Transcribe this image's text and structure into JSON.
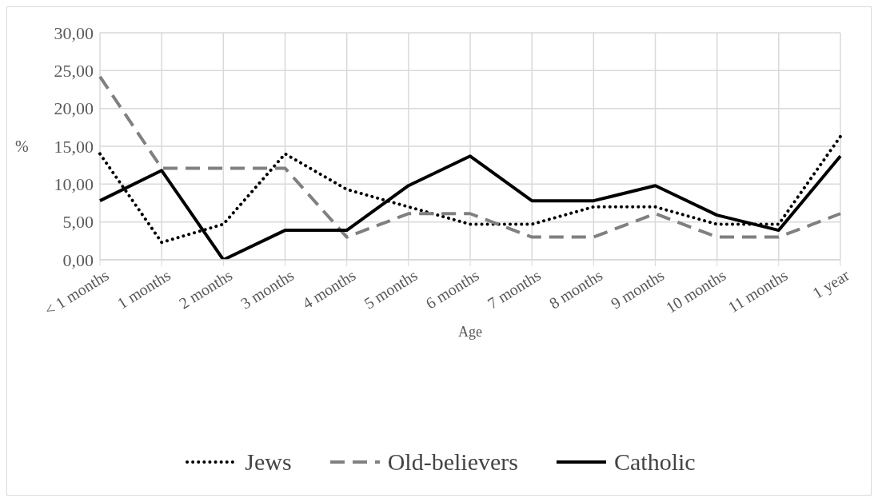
{
  "chart_data": {
    "type": "line",
    "xlabel": "Age",
    "ylabel": "%",
    "categories": [
      "< 1 months",
      "1 months",
      "2 months",
      "3 months",
      "4 months",
      "5 months",
      "6 months",
      "7 months",
      "8 months",
      "9 months",
      "10 months",
      "11 months",
      "1 year"
    ],
    "series": [
      {
        "name": "Jews",
        "color": "#000000",
        "line_style": "dotted",
        "values": [
          14.0,
          2.3,
          4.7,
          14.0,
          9.3,
          7.0,
          4.7,
          4.7,
          7.0,
          7.0,
          4.7,
          4.7,
          16.3
        ]
      },
      {
        "name": "Old-believers",
        "color": "#808080",
        "line_style": "dashed",
        "values": [
          24.2,
          12.1,
          12.1,
          12.1,
          3.0,
          6.1,
          6.1,
          3.0,
          3.0,
          6.1,
          3.0,
          3.0,
          6.1
        ]
      },
      {
        "name": "Catholic",
        "color": "#000000",
        "line_style": "solid",
        "values": [
          7.8,
          11.8,
          0.0,
          3.9,
          3.9,
          9.8,
          13.7,
          7.8,
          7.8,
          9.8,
          5.9,
          3.9,
          13.7
        ]
      }
    ],
    "ylim": [
      0,
      30
    ],
    "yticks": [
      {
        "value": 0,
        "label": "0,00"
      },
      {
        "value": 5,
        "label": "5,00"
      },
      {
        "value": 10,
        "label": "10,00"
      },
      {
        "value": 15,
        "label": "15,00"
      },
      {
        "value": 20,
        "label": "20,00"
      },
      {
        "value": 25,
        "label": "25,00"
      },
      {
        "value": 30,
        "label": "30,00"
      }
    ],
    "grid": true,
    "legend": "bottom",
    "marker": "none"
  }
}
